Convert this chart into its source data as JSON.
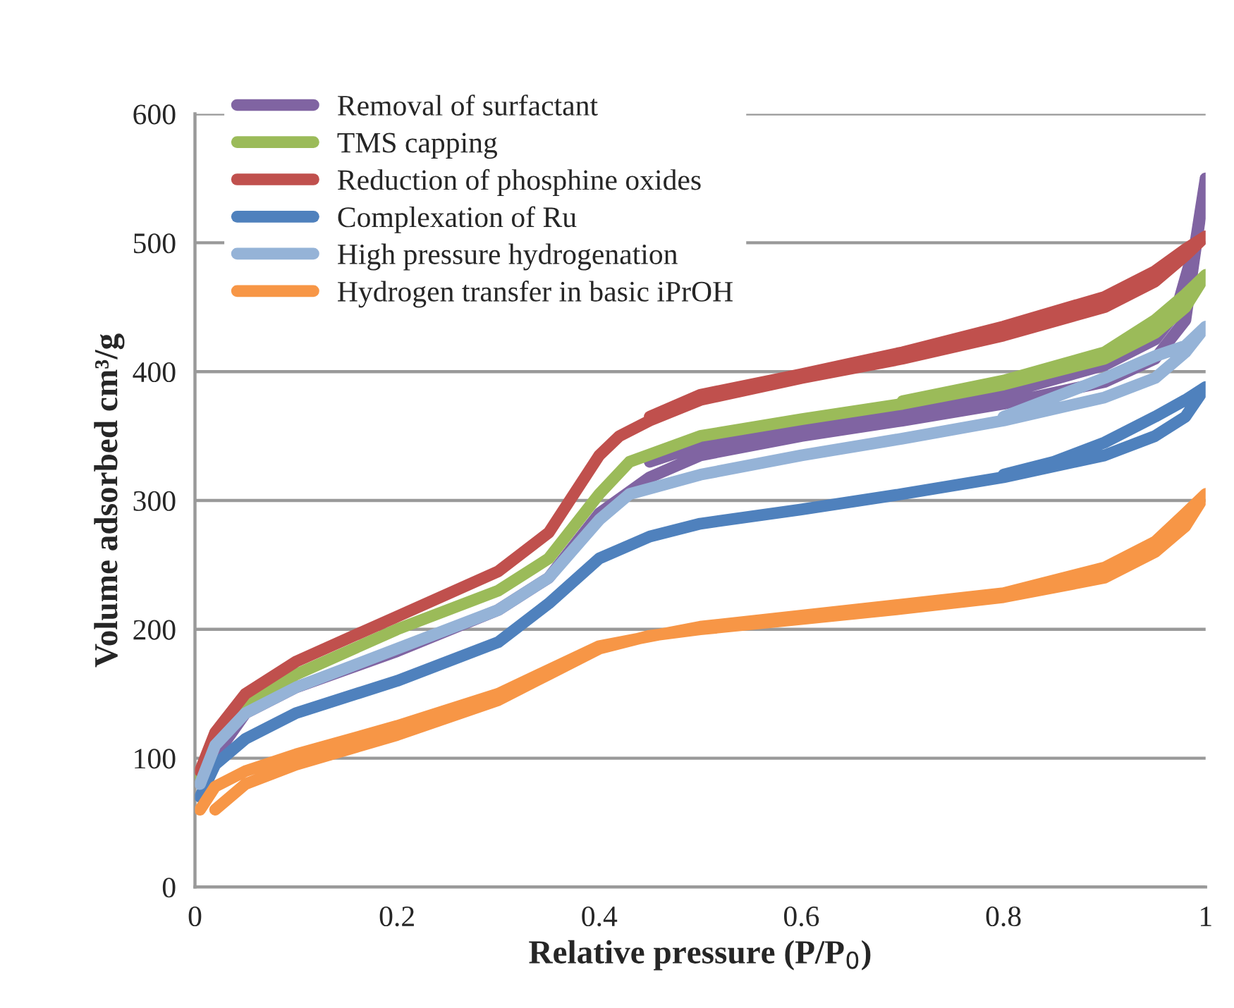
{
  "chart_data": {
    "type": "line",
    "xlabel": "Relative pressure (P/P$_{0}$)",
    "ylabel": "Volume adsorbed cm³/g",
    "xlim": [
      0,
      1
    ],
    "ylim": [
      0,
      600
    ],
    "xticks": [
      0,
      0.2,
      0.4,
      0.6,
      0.8,
      1
    ],
    "yticks": [
      0,
      100,
      200,
      300,
      400,
      500,
      600
    ],
    "grid": "y",
    "legend": "top left",
    "marker": "none",
    "line_style": "solid",
    "series": [
      {
        "name": "Removal of surfactant",
        "color": "#8064a2",
        "x": [
          0.005,
          0.05,
          0.1,
          0.2,
          0.3,
          0.35,
          0.4,
          0.45,
          0.5,
          0.6,
          0.7,
          0.8,
          0.9,
          0.95,
          0.98,
          1.0,
          0.99,
          0.97,
          0.95,
          0.9,
          0.8,
          0.6,
          0.5,
          0.45
        ],
        "values": [
          85,
          135,
          155,
          183,
          215,
          240,
          290,
          318,
          335,
          350,
          362,
          375,
          392,
          410,
          440,
          550,
          500,
          445,
          425,
          405,
          383,
          358,
          343,
          330
        ]
      },
      {
        "name": "TMS capping",
        "color": "#9bbb59",
        "x": [
          0.005,
          0.02,
          0.05,
          0.1,
          0.2,
          0.3,
          0.35,
          0.4,
          0.43,
          0.5,
          0.6,
          0.7,
          0.8,
          0.9,
          0.95,
          0.98,
          1.0,
          0.98,
          0.95,
          0.9,
          0.8,
          0.7
        ],
        "values": [
          85,
          115,
          140,
          165,
          200,
          230,
          255,
          305,
          330,
          350,
          363,
          375,
          390,
          410,
          430,
          450,
          475,
          460,
          440,
          415,
          393,
          377
        ]
      },
      {
        "name": "Reduction of phosphine oxides",
        "color": "#c0504d",
        "x": [
          0.005,
          0.02,
          0.05,
          0.1,
          0.2,
          0.3,
          0.35,
          0.4,
          0.42,
          0.45,
          0.5,
          0.6,
          0.7,
          0.8,
          0.9,
          0.95,
          0.98,
          1.0,
          0.98,
          0.95,
          0.9,
          0.8,
          0.7,
          0.6,
          0.5,
          0.45
        ],
        "values": [
          90,
          120,
          150,
          175,
          210,
          245,
          275,
          335,
          350,
          362,
          378,
          395,
          410,
          428,
          450,
          470,
          490,
          505,
          495,
          478,
          458,
          435,
          415,
          398,
          382,
          365
        ]
      },
      {
        "name": "Complexation of Ru",
        "color": "#4f81bd",
        "x": [
          0.005,
          0.02,
          0.05,
          0.1,
          0.2,
          0.3,
          0.35,
          0.4,
          0.45,
          0.5,
          0.6,
          0.7,
          0.8,
          0.9,
          0.95,
          0.98,
          1.0,
          0.98,
          0.95,
          0.9,
          0.85,
          0.8
        ],
        "values": [
          70,
          95,
          115,
          135,
          160,
          190,
          220,
          255,
          272,
          282,
          293,
          305,
          318,
          335,
          350,
          365,
          388,
          378,
          365,
          345,
          330,
          320
        ]
      },
      {
        "name": "High pressure hydrogenation",
        "color": "#95b3d7",
        "x": [
          0.005,
          0.02,
          0.05,
          0.1,
          0.2,
          0.3,
          0.35,
          0.4,
          0.43,
          0.5,
          0.6,
          0.7,
          0.8,
          0.9,
          0.95,
          0.98,
          1.0,
          0.98,
          0.95,
          0.9,
          0.85,
          0.8
        ],
        "values": [
          80,
          110,
          135,
          155,
          185,
          215,
          240,
          285,
          305,
          320,
          335,
          348,
          362,
          380,
          395,
          415,
          435,
          420,
          412,
          395,
          380,
          365
        ]
      },
      {
        "name": "Hydrogen transfer in basic iPrOH",
        "color": "#f79646",
        "x": [
          0.02,
          0.05,
          0.1,
          0.2,
          0.3,
          0.35,
          0.4,
          0.45,
          0.5,
          0.6,
          0.7,
          0.8,
          0.9,
          0.95,
          0.98,
          1.0,
          0.98,
          0.95,
          0.9,
          0.8,
          0.5,
          0.4,
          0.3,
          0.2,
          0.1,
          0.05,
          0.02,
          0.005
        ],
        "values": [
          60,
          80,
          95,
          118,
          145,
          165,
          185,
          195,
          200,
          208,
          216,
          225,
          240,
          260,
          280,
          305,
          290,
          268,
          248,
          228,
          202,
          187,
          150,
          125,
          103,
          90,
          78,
          60
        ]
      }
    ]
  }
}
